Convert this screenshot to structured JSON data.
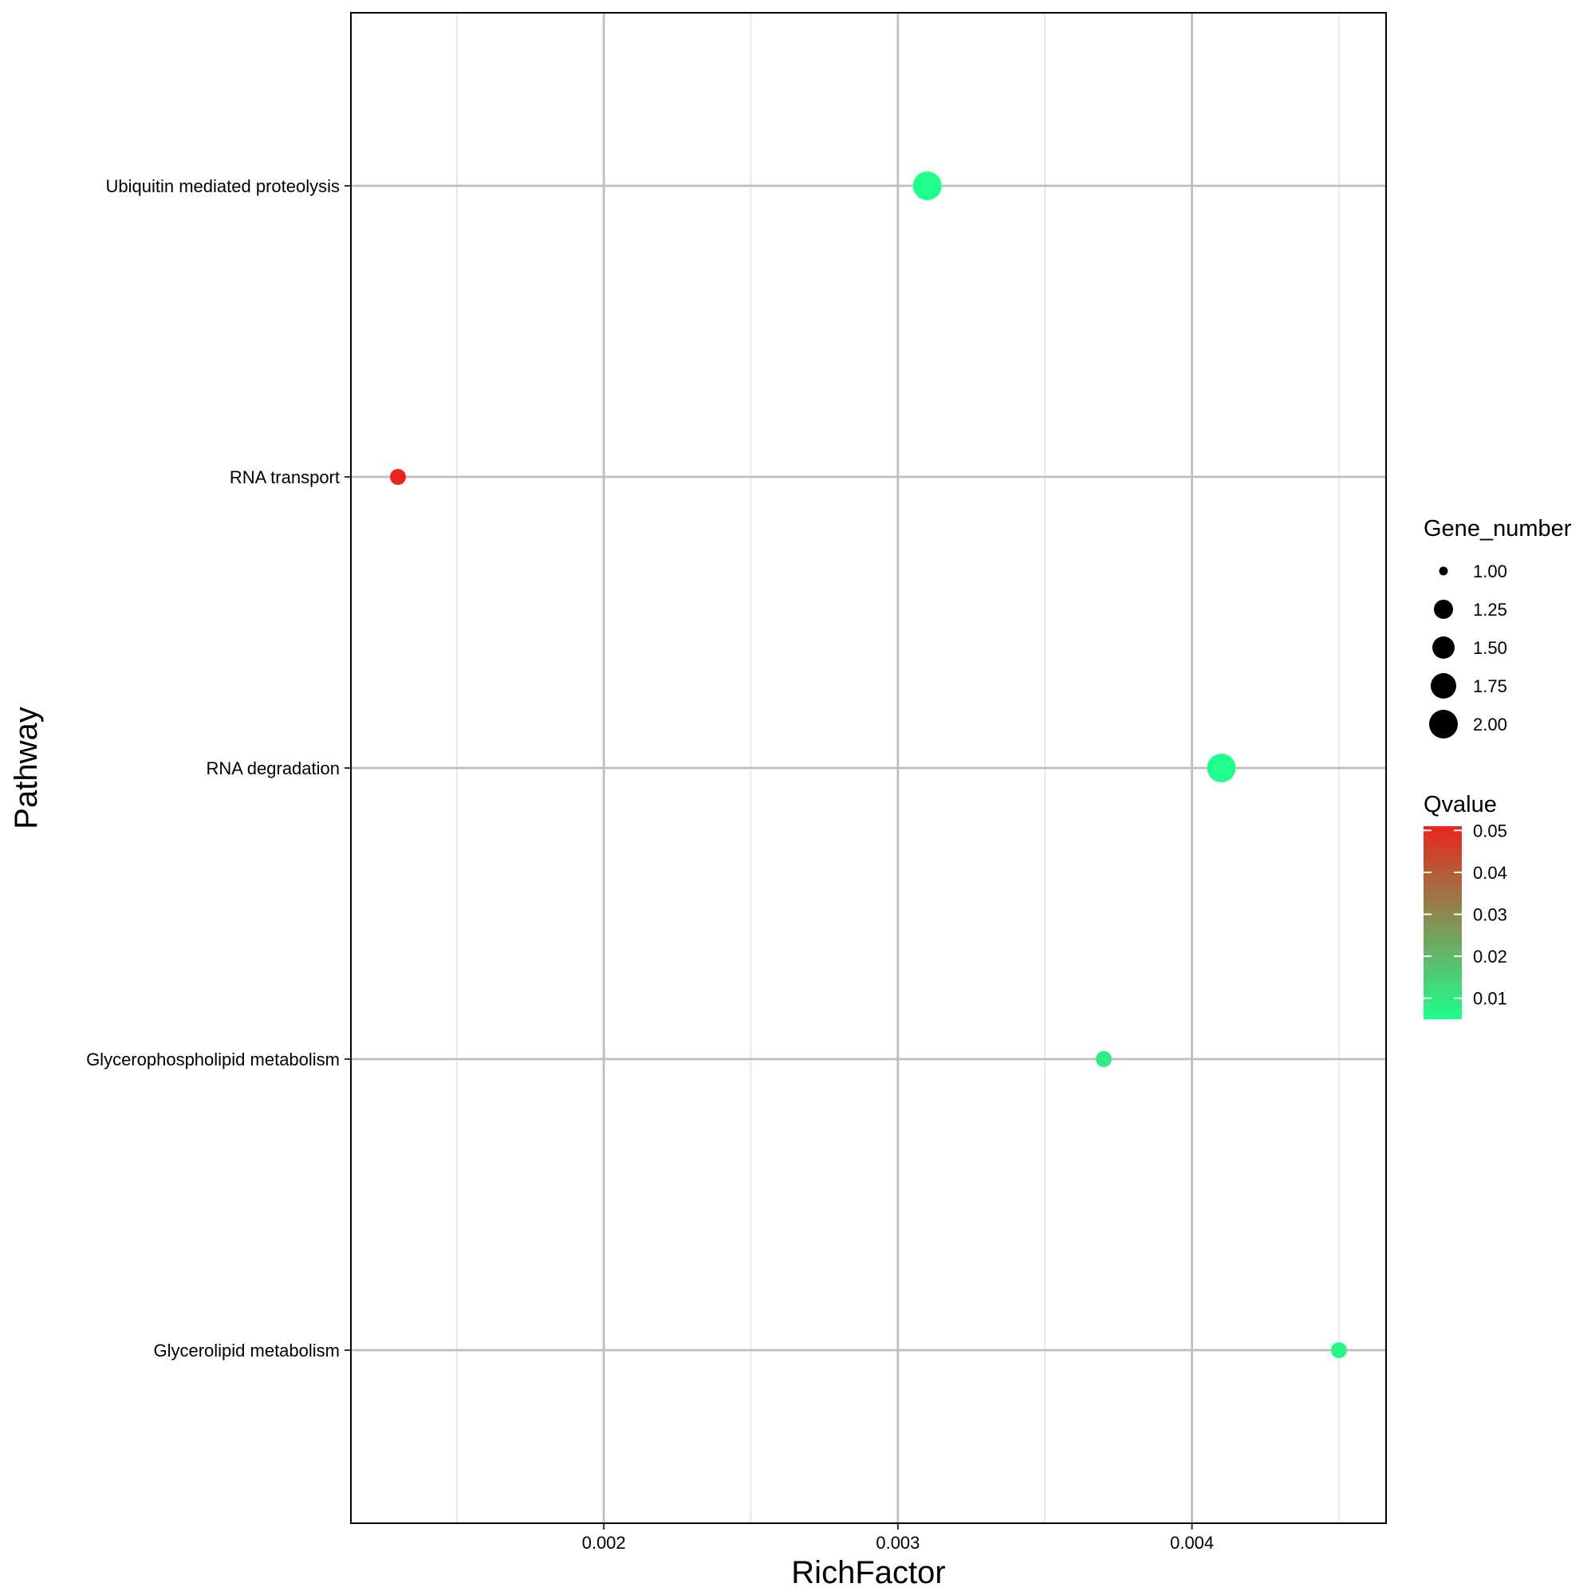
{
  "chart_data": {
    "type": "scatter",
    "title": "",
    "xlabel": "RichFactor",
    "ylabel": "Pathway",
    "xlim": [
      0.00114,
      0.00466
    ],
    "x_ticks": [
      0.002,
      0.003,
      0.004
    ],
    "x_tick_labels": [
      "0.002",
      "0.003",
      "0.004"
    ],
    "categories": [
      "Glycerolipid metabolism",
      "Glycerophospholipid metabolism",
      "RNA degradation",
      "RNA transport",
      "Ubiquitin mediated proteolysis"
    ],
    "points": [
      {
        "pathway": "Ubiquitin mediated proteolysis",
        "rich_factor": 0.0031,
        "gene_number": 2,
        "qvalue": 0.005
      },
      {
        "pathway": "RNA transport",
        "rich_factor": 0.0013,
        "gene_number": 1,
        "qvalue": 0.051
      },
      {
        "pathway": "RNA degradation",
        "rich_factor": 0.0041,
        "gene_number": 2,
        "qvalue": 0.005
      },
      {
        "pathway": "Glycerophospholipid metabolism",
        "rich_factor": 0.0037,
        "gene_number": 1,
        "qvalue": 0.009
      },
      {
        "pathway": "Glycerolipid metabolism",
        "rich_factor": 0.0045,
        "gene_number": 1,
        "qvalue": 0.007
      }
    ],
    "grid": true,
    "size_legend": {
      "title": "Gene_number",
      "breaks": [
        1.0,
        1.25,
        1.5,
        1.75,
        2.0
      ],
      "labels": [
        "1.00",
        "1.25",
        "1.50",
        "1.75",
        "2.00"
      ]
    },
    "color_legend": {
      "title": "Qvalue",
      "range": [
        0.005,
        0.051
      ],
      "low_color": "#1EFF8C",
      "high_color": "#E8261E",
      "breaks": [
        0.05,
        0.04,
        0.03,
        0.02,
        0.01
      ],
      "labels": [
        "0.05",
        "0.04",
        "0.03",
        "0.02",
        "0.01"
      ]
    },
    "legend_position": "right"
  },
  "colors": {
    "grid_major": "#BEBEBE",
    "grid_minor": "#DCDCDC",
    "panel_border": "#000000"
  }
}
